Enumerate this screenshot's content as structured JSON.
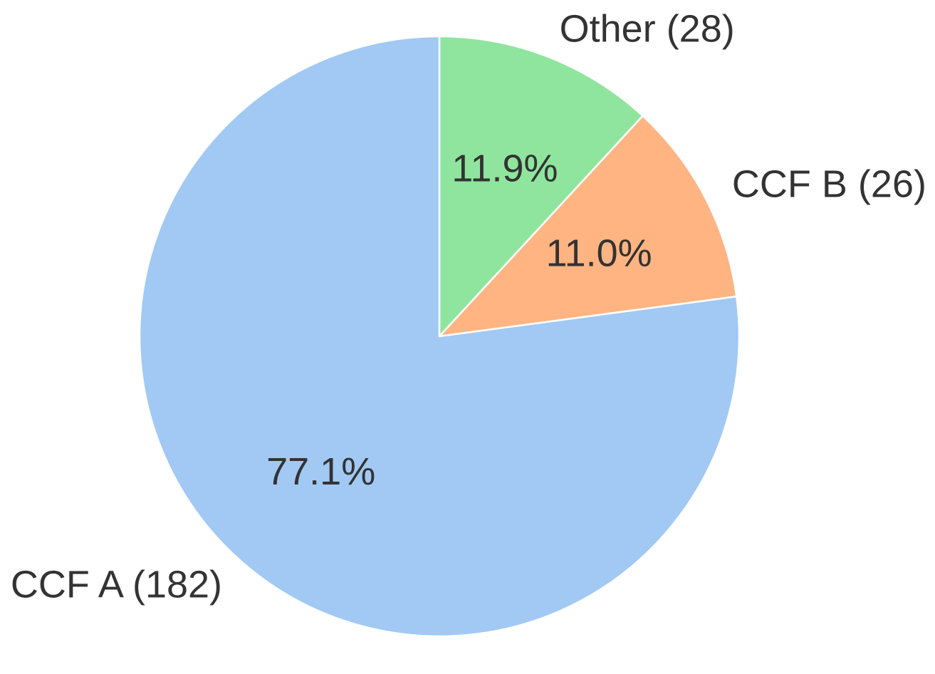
{
  "chart_data": {
    "type": "pie",
    "title": "",
    "start_angle_deg": 90,
    "direction": "clockwise",
    "slices": [
      {
        "label": "Other (28)",
        "value": 28,
        "pct_label": "11.9%",
        "color": "#8fe59e"
      },
      {
        "label": "CCF B (26)",
        "value": 26,
        "pct_label": "11.0%",
        "color": "#ffb482"
      },
      {
        "label": "CCF A (182)",
        "value": 182,
        "pct_label": "77.1%",
        "color": "#a1c9f4"
      }
    ],
    "legend": "none"
  }
}
